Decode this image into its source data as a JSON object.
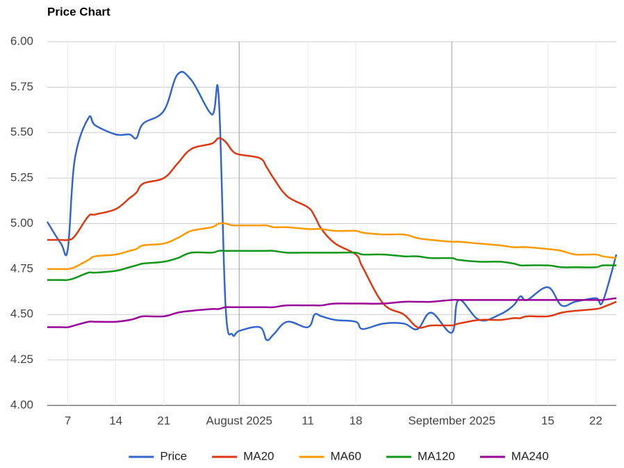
{
  "chart_data": {
    "type": "line",
    "title": "Price Chart",
    "x": [
      "2025-07-04",
      "2025-07-06",
      "2025-07-07",
      "2025-07-08",
      "2025-07-10",
      "2025-07-11",
      "2025-07-14",
      "2025-07-16",
      "2025-07-17",
      "2025-07-18",
      "2025-07-21",
      "2025-07-23",
      "2025-07-25",
      "2025-07-28",
      "2025-07-29",
      "2025-07-30",
      "2025-07-31",
      "2025-08-01",
      "2025-08-04",
      "2025-08-05",
      "2025-08-06",
      "2025-08-08",
      "2025-08-11",
      "2025-08-12",
      "2025-08-13",
      "2025-08-15",
      "2025-08-18",
      "2025-08-19",
      "2025-08-22",
      "2025-08-25",
      "2025-08-27",
      "2025-08-29",
      "2025-09-01",
      "2025-09-02",
      "2025-09-05",
      "2025-09-08",
      "2025-09-10",
      "2025-09-11",
      "2025-09-12",
      "2025-09-15",
      "2025-09-17",
      "2025-09-19",
      "2025-09-22",
      "2025-09-23",
      "2025-09-25"
    ],
    "series": [
      {
        "name": "Price",
        "color": "#3366cc",
        "values": [
          5.01,
          4.89,
          4.86,
          5.35,
          5.58,
          5.54,
          5.49,
          5.49,
          5.47,
          5.55,
          5.62,
          5.82,
          5.79,
          5.6,
          5.7,
          4.55,
          4.39,
          4.41,
          4.43,
          4.36,
          4.39,
          4.46,
          4.43,
          4.5,
          4.49,
          4.47,
          4.46,
          4.42,
          4.45,
          4.45,
          4.42,
          4.51,
          4.4,
          4.58,
          4.47,
          4.5,
          4.55,
          4.6,
          4.58,
          4.65,
          4.55,
          4.57,
          4.59,
          4.57,
          4.83
        ]
      },
      {
        "name": "MA20",
        "color": "#dc3912",
        "values": [
          4.91,
          4.91,
          4.91,
          4.93,
          5.04,
          5.05,
          5.08,
          5.14,
          5.17,
          5.22,
          5.25,
          5.33,
          5.41,
          5.44,
          5.47,
          5.45,
          5.4,
          5.38,
          5.36,
          5.31,
          5.25,
          5.15,
          5.09,
          5.04,
          4.97,
          4.89,
          4.83,
          4.76,
          4.56,
          4.5,
          4.43,
          4.44,
          4.44,
          4.45,
          4.47,
          4.47,
          4.48,
          4.48,
          4.49,
          4.49,
          4.51,
          4.52,
          4.53,
          4.54,
          4.57
        ]
      },
      {
        "name": "MA60",
        "color": "#ff9900",
        "values": [
          4.75,
          4.75,
          4.75,
          4.76,
          4.8,
          4.82,
          4.83,
          4.85,
          4.86,
          4.88,
          4.89,
          4.92,
          4.96,
          4.98,
          5.0,
          5.0,
          4.99,
          4.99,
          4.99,
          4.99,
          4.98,
          4.98,
          4.97,
          4.97,
          4.97,
          4.96,
          4.96,
          4.95,
          4.94,
          4.94,
          4.92,
          4.91,
          4.9,
          4.9,
          4.89,
          4.88,
          4.87,
          4.87,
          4.87,
          4.86,
          4.85,
          4.83,
          4.83,
          4.82,
          4.81
        ]
      },
      {
        "name": "MA120",
        "color": "#109618",
        "values": [
          4.69,
          4.69,
          4.69,
          4.7,
          4.73,
          4.73,
          4.74,
          4.76,
          4.77,
          4.78,
          4.79,
          4.81,
          4.84,
          4.84,
          4.85,
          4.85,
          4.85,
          4.85,
          4.85,
          4.85,
          4.85,
          4.84,
          4.84,
          4.84,
          4.84,
          4.84,
          4.84,
          4.83,
          4.83,
          4.82,
          4.82,
          4.81,
          4.81,
          4.8,
          4.79,
          4.79,
          4.78,
          4.77,
          4.77,
          4.77,
          4.76,
          4.76,
          4.76,
          4.77,
          4.77
        ]
      },
      {
        "name": "MA240",
        "color": "#990099",
        "values": [
          4.43,
          4.43,
          4.43,
          4.44,
          4.46,
          4.46,
          4.46,
          4.47,
          4.48,
          4.49,
          4.49,
          4.51,
          4.52,
          4.53,
          4.53,
          4.54,
          4.54,
          4.54,
          4.54,
          4.54,
          4.54,
          4.55,
          4.55,
          4.55,
          4.55,
          4.56,
          4.56,
          4.56,
          4.56,
          4.57,
          4.57,
          4.57,
          4.58,
          4.58,
          4.58,
          4.58,
          4.58,
          4.58,
          4.58,
          4.58,
          4.58,
          4.58,
          4.58,
          4.58,
          4.59
        ]
      }
    ],
    "xlim": [
      "2025-07-04",
      "2025-09-25"
    ],
    "xticks": [
      {
        "value": "2025-07-07",
        "label": "7"
      },
      {
        "value": "2025-07-14",
        "label": "14"
      },
      {
        "value": "2025-07-21",
        "label": "21"
      },
      {
        "value": "2025-08-01",
        "label": "August 2025",
        "major": true
      },
      {
        "value": "2025-08-11",
        "label": "11"
      },
      {
        "value": "2025-08-18",
        "label": "18"
      },
      {
        "value": "2025-09-01",
        "label": "September 2025",
        "major": true
      },
      {
        "value": "2025-09-15",
        "label": "15"
      },
      {
        "value": "2025-09-22",
        "label": "22"
      }
    ],
    "ylim": [
      4,
      6
    ],
    "yticks": [
      {
        "value": 4,
        "label": "4.00"
      },
      {
        "value": 4.25,
        "label": "4.25"
      },
      {
        "value": 4.5,
        "label": "4.50"
      },
      {
        "value": 4.75,
        "label": "4.75"
      },
      {
        "value": 5,
        "label": "5.00"
      },
      {
        "value": 5.25,
        "label": "5.25"
      },
      {
        "value": 5.5,
        "label": "5.50"
      },
      {
        "value": 5.75,
        "label": "5.75"
      },
      {
        "value": 6,
        "label": "6.00"
      }
    ],
    "grid": true,
    "legend": "bottom"
  }
}
